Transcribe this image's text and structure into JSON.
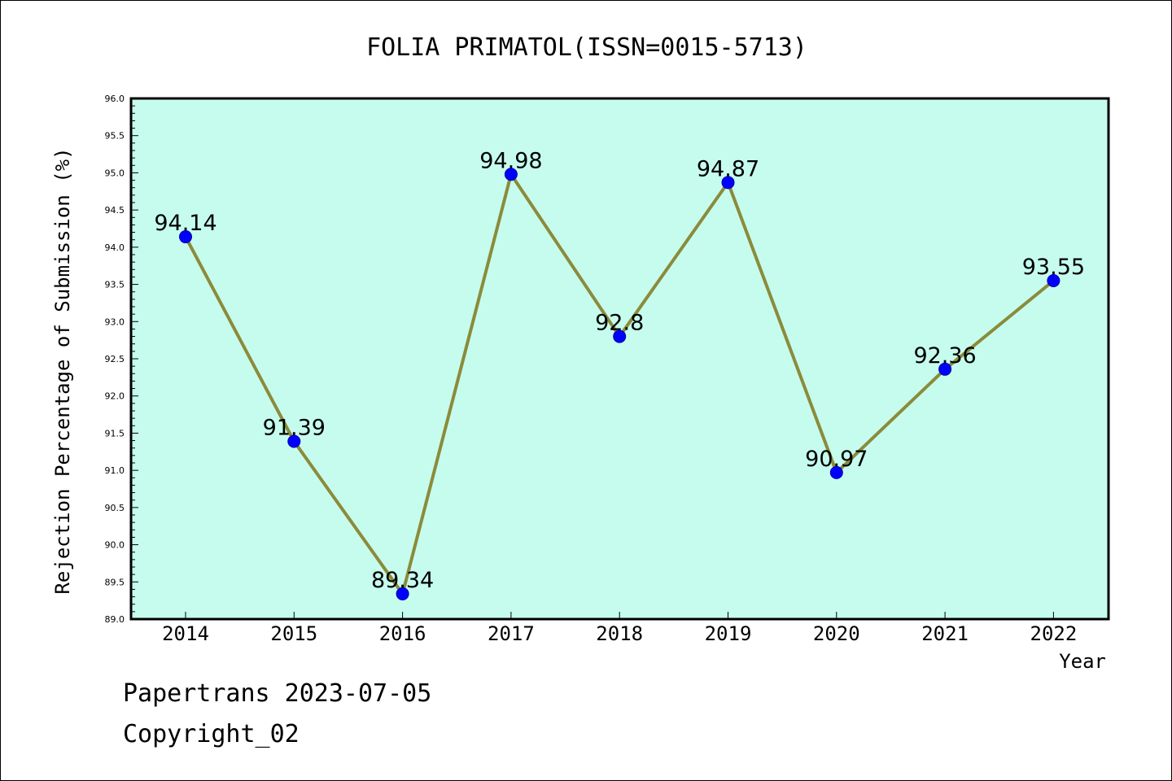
{
  "chart_data": {
    "type": "line",
    "title": "FOLIA PRIMATOL(ISSN=0015-5713)",
    "xlabel": "Year",
    "ylabel": "Rejection Percentage of Submission (%)",
    "categories": [
      "2014",
      "2015",
      "2016",
      "2017",
      "2018",
      "2019",
      "2020",
      "2021",
      "2022"
    ],
    "values": [
      94.14,
      91.39,
      89.34,
      94.98,
      92.8,
      94.87,
      90.97,
      92.36,
      93.55
    ],
    "data_labels": [
      "94.14",
      "91.39",
      "89.34",
      "94.98",
      "92.8",
      "94.87",
      "90.97",
      "92.36",
      "93.55"
    ],
    "ylim": [
      89.0,
      96.0
    ],
    "y_ticks": [
      "89.0",
      "89.5",
      "90.0",
      "90.5",
      "91.0",
      "91.5",
      "92.0",
      "92.5",
      "93.0",
      "93.5",
      "94.0",
      "94.5",
      "95.0",
      "95.5",
      "96.0"
    ],
    "grid": false,
    "colors": {
      "plot_background": "#c6fcee",
      "line": "#8b8b3a",
      "marker": "#0000ff"
    }
  },
  "footer": {
    "line1": "Papertrans 2023-07-05",
    "line2": "Copyright_02"
  }
}
